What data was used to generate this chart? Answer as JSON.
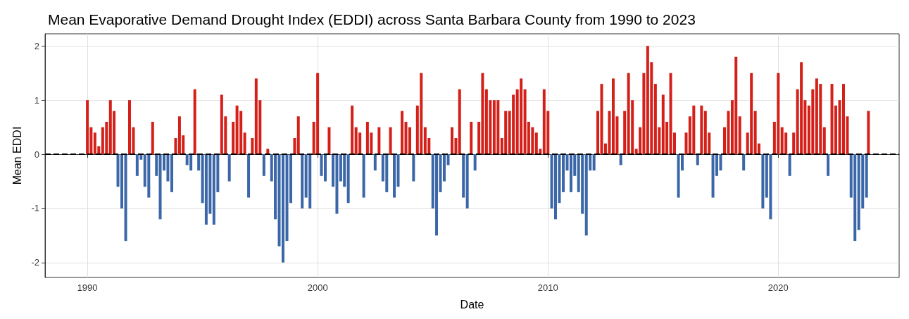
{
  "chart_data": {
    "type": "bar",
    "title": "Mean Evaporative Demand Drought Index (EDDI) across Santa Barbara County from 1990 to 2023",
    "xlabel": "Date",
    "ylabel": "Mean EDDI",
    "x": [
      "1990-01",
      "1990-03",
      "1990-05",
      "1990-07",
      "1990-09",
      "1990-11",
      "1991-01",
      "1991-03",
      "1991-05",
      "1991-07",
      "1991-09",
      "1991-11",
      "1992-01",
      "1992-03",
      "1992-05",
      "1992-07",
      "1992-09",
      "1992-11",
      "1993-01",
      "1993-03",
      "1993-05",
      "1993-07",
      "1993-09",
      "1993-11",
      "1994-01",
      "1994-03",
      "1994-05",
      "1994-07",
      "1994-09",
      "1994-11",
      "1995-01",
      "1995-03",
      "1995-05",
      "1995-07",
      "1995-09",
      "1995-11",
      "1996-01",
      "1996-03",
      "1996-05",
      "1996-07",
      "1996-09",
      "1996-11",
      "1997-01",
      "1997-03",
      "1997-05",
      "1997-07",
      "1997-09",
      "1997-11",
      "1998-01",
      "1998-03",
      "1998-05",
      "1998-07",
      "1998-09",
      "1998-11",
      "1999-01",
      "1999-03",
      "1999-05",
      "1999-07",
      "1999-09",
      "1999-11",
      "2000-01",
      "2000-03",
      "2000-05",
      "2000-07",
      "2000-09",
      "2000-11",
      "2001-01",
      "2001-03",
      "2001-05",
      "2001-07",
      "2001-09",
      "2001-11",
      "2002-01",
      "2002-03",
      "2002-05",
      "2002-07",
      "2002-09",
      "2002-11",
      "2003-01",
      "2003-03",
      "2003-05",
      "2003-07",
      "2003-09",
      "2003-11",
      "2004-01",
      "2004-03",
      "2004-05",
      "2004-07",
      "2004-09",
      "2004-11",
      "2005-01",
      "2005-03",
      "2005-05",
      "2005-07",
      "2005-09",
      "2005-11",
      "2006-01",
      "2006-03",
      "2006-05",
      "2006-07",
      "2006-09",
      "2006-11",
      "2007-01",
      "2007-03",
      "2007-05",
      "2007-07",
      "2007-09",
      "2007-11",
      "2008-01",
      "2008-03",
      "2008-05",
      "2008-07",
      "2008-09",
      "2008-11",
      "2009-01",
      "2009-03",
      "2009-05",
      "2009-07",
      "2009-09",
      "2009-11",
      "2010-01",
      "2010-03",
      "2010-05",
      "2010-07",
      "2010-09",
      "2010-11",
      "2011-01",
      "2011-03",
      "2011-05",
      "2011-07",
      "2011-09",
      "2011-11",
      "2012-01",
      "2012-03",
      "2012-05",
      "2012-07",
      "2012-09",
      "2012-11",
      "2013-01",
      "2013-03",
      "2013-05",
      "2013-07",
      "2013-09",
      "2013-11",
      "2014-01",
      "2014-03",
      "2014-05",
      "2014-07",
      "2014-09",
      "2014-11",
      "2015-01",
      "2015-03",
      "2015-05",
      "2015-07",
      "2015-09",
      "2015-11",
      "2016-01",
      "2016-03",
      "2016-05",
      "2016-07",
      "2016-09",
      "2016-11",
      "2017-01",
      "2017-03",
      "2017-05",
      "2017-07",
      "2017-09",
      "2017-11",
      "2018-01",
      "2018-03",
      "2018-05",
      "2018-07",
      "2018-09",
      "2018-11",
      "2019-01",
      "2019-03",
      "2019-05",
      "2019-07",
      "2019-09",
      "2019-11",
      "2020-01",
      "2020-03",
      "2020-05",
      "2020-07",
      "2020-09",
      "2020-11",
      "2021-01",
      "2021-03",
      "2021-05",
      "2021-07",
      "2021-09",
      "2021-11",
      "2022-01",
      "2022-03",
      "2022-05",
      "2022-07",
      "2022-09",
      "2022-11",
      "2023-01",
      "2023-03",
      "2023-05",
      "2023-07",
      "2023-09",
      "2023-11",
      "2023-12"
    ],
    "series": [
      {
        "color": "#d42019",
        "values": [
          1.0,
          0.5,
          0.4,
          0.15,
          0.5,
          0.6,
          1.0,
          0.8,
          null,
          null,
          null,
          1.0,
          0.5,
          null,
          null,
          null,
          null,
          0.6,
          null,
          null,
          null,
          null,
          null,
          0.3,
          0.7,
          0.35,
          null,
          null,
          1.2,
          null,
          null,
          null,
          null,
          null,
          null,
          1.1,
          0.7,
          null,
          0.6,
          0.9,
          0.8,
          0.4,
          null,
          0.3,
          1.4,
          1.0,
          null,
          0.1,
          null,
          null,
          null,
          null,
          null,
          null,
          0.3,
          0.7,
          null,
          null,
          null,
          0.6,
          1.5,
          null,
          null,
          0.5,
          null,
          null,
          null,
          null,
          null,
          0.9,
          0.5,
          0.4,
          null,
          0.6,
          0.4,
          null,
          0.5,
          null,
          null,
          0.5,
          null,
          null,
          0.8,
          0.6,
          0.5,
          null,
          0.9,
          1.5,
          0.5,
          0.3,
          null,
          null,
          null,
          null,
          null,
          0.5,
          0.3,
          1.2,
          null,
          null,
          0.6,
          null,
          0.6,
          1.5,
          1.2,
          1.0,
          1.0,
          1.0,
          0.3,
          0.8,
          0.8,
          1.1,
          1.2,
          1.4,
          1.2,
          0.6,
          0.5,
          0.4,
          0.1,
          1.2,
          0.8,
          null,
          null,
          null,
          null,
          null,
          null,
          null,
          null,
          null,
          null,
          null,
          null,
          0.8,
          1.3,
          0.2,
          0.8,
          1.4,
          0.7,
          null,
          0.8,
          1.5,
          1.0,
          0.1,
          0.5,
          1.5,
          2.0,
          1.7,
          1.3,
          0.5,
          1.1,
          0.6,
          1.5,
          0.4,
          null,
          null,
          0.4,
          0.7,
          0.9,
          null,
          0.9,
          0.8,
          0.4,
          null,
          null,
          null,
          0.5,
          0.8,
          1.0,
          1.8,
          0.7,
          null,
          0.4,
          1.5,
          0.8,
          0.2,
          null,
          null,
          null,
          0.6,
          1.5,
          0.5,
          0.4,
          null,
          0.4,
          1.2,
          1.7,
          1.0,
          0.9,
          1.2,
          1.4,
          1.3,
          0.5,
          null,
          1.3,
          0.9,
          1.0,
          1.3,
          0.7,
          null,
          null,
          null,
          null,
          null,
          0.8
        ]
      },
      {
        "color": "#3b67a8",
        "values": [
          null,
          null,
          null,
          null,
          null,
          null,
          null,
          null,
          -0.6,
          -1.0,
          -1.6,
          null,
          null,
          -0.4,
          -0.1,
          -0.6,
          -0.8,
          null,
          -0.4,
          -1.2,
          -0.3,
          -0.5,
          -0.7,
          null,
          null,
          null,
          -0.2,
          -0.3,
          null,
          -0.3,
          -0.9,
          -1.3,
          -1.1,
          -1.3,
          -0.7,
          null,
          null,
          -0.5,
          null,
          null,
          null,
          null,
          -0.8,
          null,
          null,
          null,
          -0.4,
          null,
          -0.5,
          -1.2,
          -1.7,
          -2.0,
          -1.6,
          -0.9,
          null,
          null,
          -1.0,
          -0.8,
          -1.0,
          null,
          null,
          -0.4,
          -0.5,
          null,
          -0.6,
          -1.1,
          -0.5,
          -0.6,
          -0.9,
          null,
          null,
          null,
          -0.8,
          null,
          null,
          -0.3,
          null,
          -0.5,
          -0.7,
          null,
          -0.8,
          -0.6,
          null,
          null,
          null,
          -0.5,
          null,
          null,
          null,
          null,
          -1.0,
          -1.5,
          -0.7,
          -0.5,
          -0.2,
          null,
          null,
          null,
          -0.8,
          -1.0,
          null,
          -0.3,
          null,
          null,
          null,
          null,
          null,
          null,
          null,
          null,
          null,
          null,
          null,
          null,
          null,
          null,
          null,
          null,
          null,
          null,
          null,
          -1.0,
          -1.2,
          -0.9,
          -0.7,
          -0.3,
          -0.7,
          -0.4,
          -0.7,
          -1.1,
          -1.5,
          -0.3,
          -0.3,
          null,
          null,
          null,
          null,
          null,
          null,
          -0.2,
          null,
          null,
          null,
          null,
          null,
          null,
          null,
          null,
          null,
          null,
          null,
          null,
          null,
          null,
          -0.8,
          -0.3,
          null,
          null,
          null,
          -0.2,
          null,
          null,
          null,
          -0.8,
          -0.4,
          -0.3,
          null,
          null,
          null,
          null,
          null,
          -0.3,
          null,
          null,
          null,
          null,
          -1.0,
          -0.8,
          -1.2,
          null,
          null,
          null,
          null,
          -0.4,
          null,
          null,
          null,
          null,
          null,
          null,
          null,
          null,
          null,
          -0.4,
          null,
          null,
          null,
          null,
          null,
          -0.8,
          -1.6,
          -1.4,
          -1.0,
          -0.8,
          null
        ]
      }
    ],
    "xlim": [
      "1988-03",
      "2025-04"
    ],
    "xticks": [
      "1990",
      "2000",
      "2010",
      "2020"
    ],
    "ylim": [
      -2.275,
      2.225
    ],
    "yticks": [
      -2,
      -1,
      0,
      1,
      2
    ],
    "grid": true,
    "ref_lines": [
      {
        "axis": "y",
        "value": 0,
        "color": "#000000",
        "line_style": "dashed"
      }
    ]
  }
}
